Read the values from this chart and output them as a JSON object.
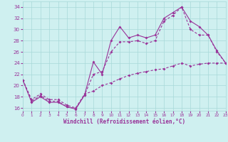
{
  "xlabel": "Windchill (Refroidissement éolien,°C)",
  "xlim": [
    0,
    23
  ],
  "ylim": [
    15.5,
    35
  ],
  "xticks": [
    0,
    1,
    2,
    3,
    4,
    5,
    6,
    7,
    8,
    9,
    10,
    11,
    12,
    13,
    14,
    15,
    16,
    17,
    18,
    19,
    20,
    21,
    22,
    23
  ],
  "yticks": [
    16,
    18,
    20,
    22,
    24,
    26,
    28,
    30,
    32,
    34
  ],
  "background_color": "#cff0f0",
  "grid_color": "#a8d8d8",
  "line_color": "#993399",
  "line1_x": [
    0,
    1,
    2,
    3,
    4,
    5,
    6,
    7,
    8,
    9,
    10,
    11,
    12,
    13,
    14,
    15,
    16,
    17,
    18,
    19,
    20,
    21,
    22,
    23
  ],
  "line1_y": [
    21,
    17,
    18,
    17,
    17,
    16.2,
    15.8,
    18.3,
    24.2,
    22,
    28,
    30.5,
    28.5,
    29,
    28.5,
    29,
    32,
    33,
    34,
    31.5,
    30.5,
    29,
    26.2,
    24
  ],
  "line2_x": [
    0,
    1,
    2,
    3,
    4,
    5,
    6,
    7,
    8,
    9,
    10,
    11,
    12,
    13,
    14,
    15,
    16,
    17,
    18,
    19,
    20,
    21,
    22,
    23
  ],
  "line2_y": [
    21,
    17.2,
    18.2,
    17.2,
    17.2,
    16.2,
    15.9,
    18.3,
    22,
    22.5,
    26,
    27.8,
    27.8,
    28,
    27.5,
    28,
    31.5,
    32.5,
    34,
    30,
    29,
    29,
    26,
    24
  ],
  "line3_x": [
    0,
    1,
    2,
    3,
    4,
    5,
    6,
    7,
    8,
    9,
    10,
    11,
    12,
    13,
    14,
    15,
    16,
    17,
    18,
    19,
    20,
    21,
    22,
    23
  ],
  "line3_y": [
    21,
    17.5,
    18.5,
    17.5,
    17.5,
    16.5,
    16.0,
    18.5,
    19.0,
    20.0,
    20.5,
    21.2,
    21.8,
    22.2,
    22.5,
    22.8,
    23.0,
    23.5,
    24.0,
    23.5,
    23.8,
    24.0,
    24.0,
    24.0
  ]
}
